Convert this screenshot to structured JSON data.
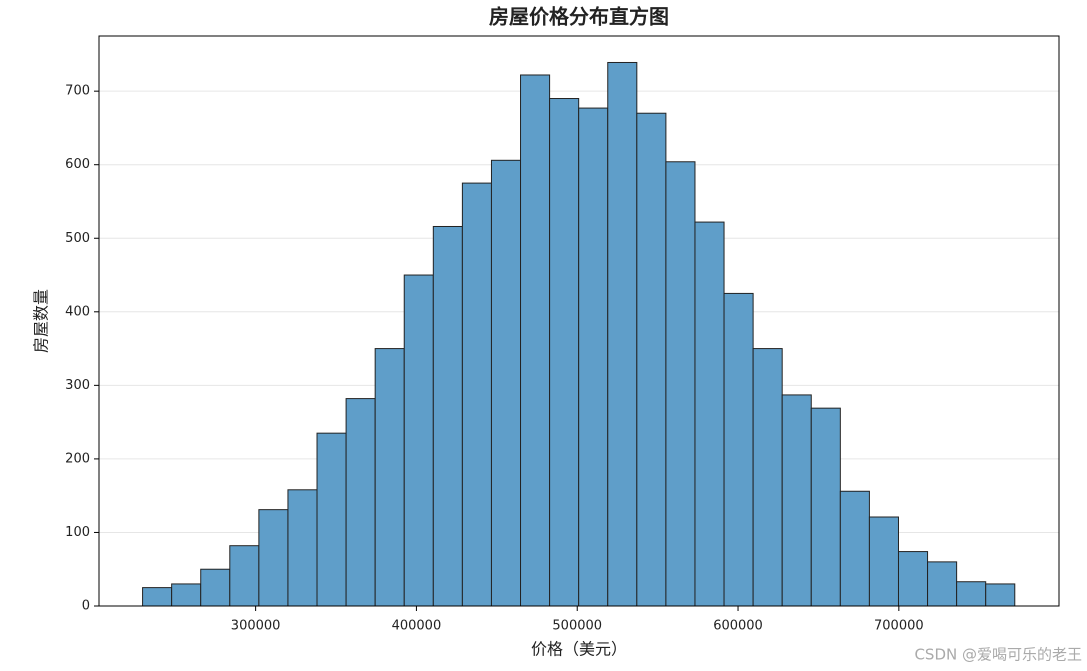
{
  "chart_data": {
    "type": "histogram",
    "title": "房屋价格分布直方图",
    "x_label": "价格（美元）",
    "y_label": "房屋数量",
    "bins": [
      229700,
      247780,
      265860,
      283940,
      302020,
      320100,
      338180,
      356260,
      374340,
      392420,
      410500,
      428580,
      446660,
      464740,
      482820,
      500900,
      518980,
      537060,
      555140,
      573220,
      591300,
      609380,
      627460,
      645540,
      663620,
      681700,
      699780,
      717860,
      735940,
      754020,
      772100
    ],
    "values": [
      25,
      30,
      50,
      82,
      131,
      158,
      235,
      282,
      350,
      450,
      516,
      575,
      606,
      722,
      690,
      677,
      739,
      670,
      604,
      522,
      425,
      350,
      287,
      269,
      156,
      121,
      74,
      60,
      33,
      30
    ],
    "color": "#5f9ec9",
    "edge_color": "#222222",
    "xlim": [
      202600,
      799600
    ],
    "ylim": [
      0,
      775
    ],
    "xticks": [
      300000,
      400000,
      500000,
      600000,
      700000
    ],
    "yticks": [
      0,
      100,
      200,
      300,
      400,
      500,
      600,
      700
    ],
    "grid": true
  },
  "watermark": "CSDN @爱喝可乐的老王"
}
